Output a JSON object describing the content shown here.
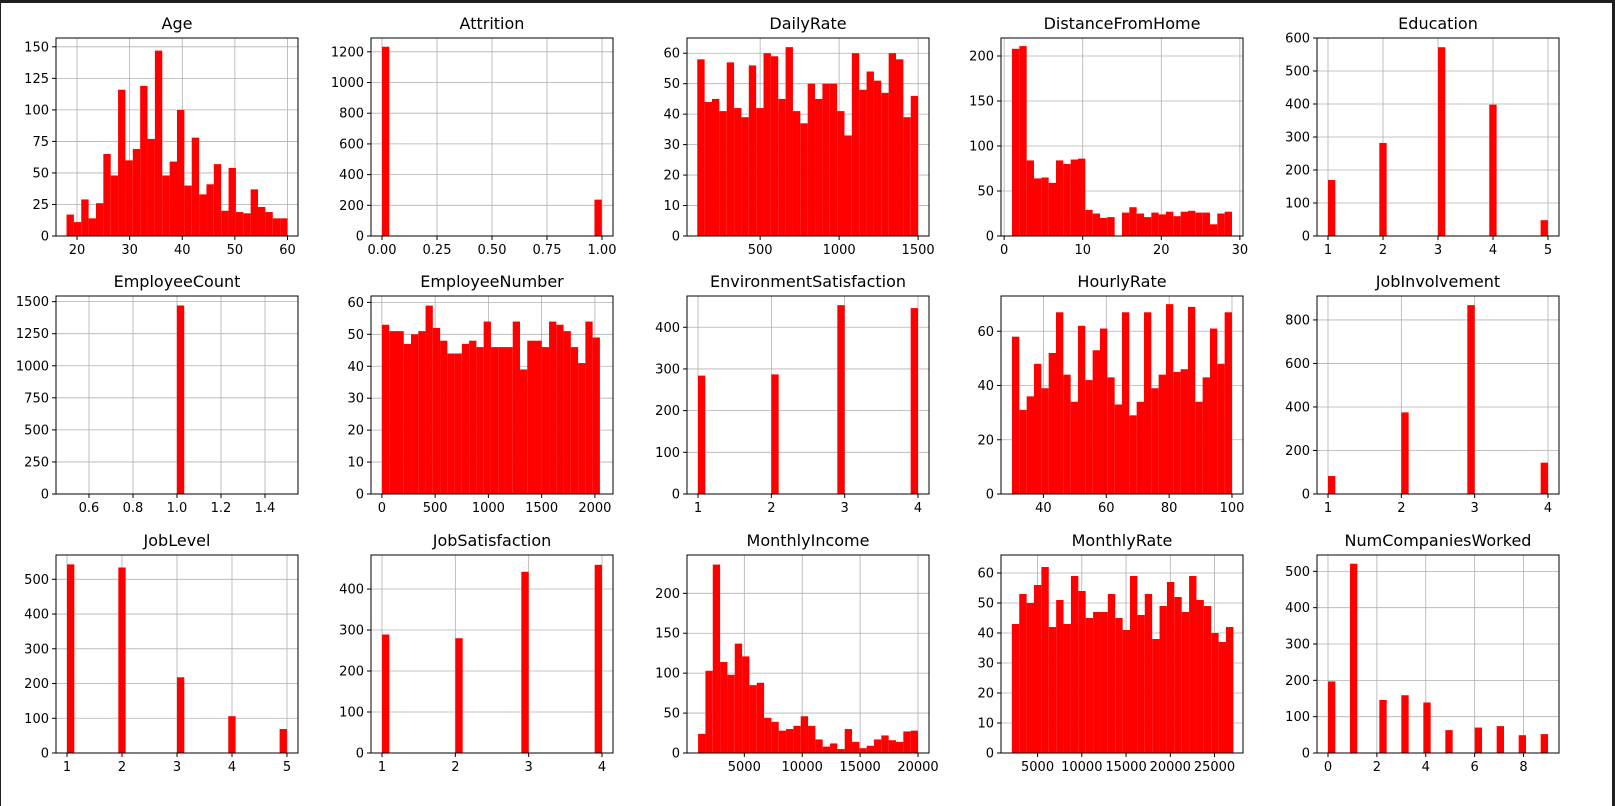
{
  "chart_data": [
    {
      "type": "bar",
      "title": "Age",
      "bar_color": "#ff0000",
      "xlim": [
        16,
        62
      ],
      "ylim": [
        0,
        157
      ],
      "xticks": [
        20,
        30,
        40,
        50,
        60
      ],
      "yticks": [
        0,
        25,
        50,
        75,
        100,
        125,
        150
      ],
      "bin_start": 18,
      "bin_width": 1.4,
      "values": [
        17,
        11,
        29,
        14,
        26,
        65,
        48,
        116,
        60,
        69,
        119,
        77,
        147,
        48,
        59,
        100,
        40,
        78,
        33,
        41,
        57,
        20,
        54,
        19,
        18,
        37,
        23,
        19,
        14,
        14
      ]
    },
    {
      "type": "bar",
      "title": "Attrition",
      "xlim": [
        -0.05,
        1.05
      ],
      "ylim": [
        0,
        1290
      ],
      "xticks": [
        "0.00",
        "0.25",
        "0.50",
        "0.75",
        "1.00"
      ],
      "xtick_values": [
        0,
        0.25,
        0.5,
        0.75,
        1
      ],
      "yticks": [
        0,
        200,
        400,
        600,
        800,
        1000,
        1200
      ],
      "bin_start": 0,
      "bin_width": 0.0333,
      "values": [
        1233,
        0,
        0,
        0,
        0,
        0,
        0,
        0,
        0,
        0,
        0,
        0,
        0,
        0,
        0,
        0,
        0,
        0,
        0,
        0,
        0,
        0,
        0,
        0,
        0,
        0,
        0,
        0,
        0,
        237
      ]
    },
    {
      "type": "bar",
      "title": "DailyRate",
      "xlim": [
        37,
        1569
      ],
      "ylim": [
        0,
        65
      ],
      "xticks": [
        500,
        1000,
        1500
      ],
      "yticks": [
        0,
        10,
        20,
        30,
        40,
        50,
        60
      ],
      "bin_start": 102,
      "bin_width": 46.6,
      "values": [
        58,
        44,
        45,
        41,
        57,
        42,
        39,
        56,
        42,
        60,
        59,
        45,
        62,
        41,
        37,
        50,
        45,
        50,
        50,
        41,
        33,
        60,
        48,
        54,
        51,
        47,
        60,
        58,
        39,
        46
      ]
    },
    {
      "type": "bar",
      "title": "DistanceFromHome",
      "xlim": [
        -0.4,
        30.4
      ],
      "ylim": [
        0,
        220
      ],
      "xticks": [
        0,
        10,
        20,
        30
      ],
      "yticks": [
        0,
        50,
        100,
        150,
        200
      ],
      "bin_start": 1,
      "bin_width": 0.9333,
      "values": [
        208,
        211,
        84,
        64,
        65,
        59,
        84,
        80,
        85,
        86,
        29,
        25,
        20,
        21,
        0,
        26,
        32,
        25,
        21,
        26,
        24,
        27,
        22,
        27,
        28,
        26,
        26,
        13,
        25,
        27
      ]
    },
    {
      "type": "bar",
      "title": "Education",
      "xlim": [
        0.8,
        5.2
      ],
      "ylim": [
        0,
        600
      ],
      "xticks": [
        1,
        2,
        3,
        4,
        5
      ],
      "yticks": [
        0,
        100,
        200,
        300,
        400,
        500,
        600
      ],
      "bin_start": 1,
      "bin_width": 0.1333,
      "values": [
        170,
        0,
        0,
        0,
        0,
        0,
        0,
        282,
        0,
        0,
        0,
        0,
        0,
        0,
        0,
        572,
        0,
        0,
        0,
        0,
        0,
        0,
        398,
        0,
        0,
        0,
        0,
        0,
        0,
        48
      ]
    },
    {
      "type": "bar",
      "title": "EmployeeCount",
      "xlim": [
        0.45,
        1.55
      ],
      "ylim": [
        0,
        1544
      ],
      "xticks": [
        "0.6",
        "0.8",
        "1.0",
        "1.2",
        "1.4"
      ],
      "xtick_values": [
        0.6,
        0.8,
        1.0,
        1.2,
        1.4
      ],
      "yticks": [
        0,
        250,
        500,
        750,
        1000,
        1250,
        1500
      ],
      "bin_start": 0.5,
      "bin_width": 0.0333,
      "values": [
        0,
        0,
        0,
        0,
        0,
        0,
        0,
        0,
        0,
        0,
        0,
        0,
        0,
        0,
        0,
        1470,
        0,
        0,
        0,
        0,
        0,
        0,
        0,
        0,
        0,
        0,
        0,
        0,
        0,
        0
      ]
    },
    {
      "type": "bar",
      "title": "EmployeeNumber",
      "xlim": [
        -102,
        2170
      ],
      "ylim": [
        0,
        62
      ],
      "xticks": [
        0,
        500,
        1000,
        1500,
        2000
      ],
      "yticks": [
        0,
        10,
        20,
        30,
        40,
        50,
        60
      ],
      "bin_start": 1,
      "bin_width": 68.2,
      "values": [
        53,
        51,
        51,
        47,
        50,
        51,
        59,
        52,
        48,
        44,
        44,
        47,
        48,
        46,
        54,
        46,
        46,
        46,
        54,
        39,
        48,
        48,
        46,
        54,
        53,
        51,
        46,
        41,
        54,
        49
      ]
    },
    {
      "type": "bar",
      "title": "EnvironmentSatisfaction",
      "xlim": [
        0.85,
        4.15
      ],
      "ylim": [
        0,
        475
      ],
      "xticks": [
        1,
        2,
        3,
        4
      ],
      "yticks": [
        0,
        100,
        200,
        300,
        400
      ],
      "bin_start": 1,
      "bin_width": 0.1,
      "values": [
        284,
        0,
        0,
        0,
        0,
        0,
        0,
        0,
        0,
        0,
        287,
        0,
        0,
        0,
        0,
        0,
        0,
        0,
        0,
        453,
        0,
        0,
        0,
        0,
        0,
        0,
        0,
        0,
        0,
        446
      ]
    },
    {
      "type": "bar",
      "title": "HourlyRate",
      "xlim": [
        26.5,
        103.5
      ],
      "ylim": [
        0,
        73
      ],
      "xticks": [
        40,
        60,
        80,
        100
      ],
      "yticks": [
        0,
        20,
        40,
        60
      ],
      "bin_start": 30,
      "bin_width": 2.333,
      "values": [
        58,
        31,
        36,
        48,
        39,
        52,
        67,
        44,
        34,
        62,
        42,
        53,
        61,
        43,
        33,
        67,
        29,
        34,
        67,
        39,
        44,
        70,
        45,
        46,
        69,
        34,
        43,
        61,
        48,
        67
      ]
    },
    {
      "type": "bar",
      "title": "JobInvolvement",
      "xlim": [
        0.85,
        4.15
      ],
      "ylim": [
        0,
        910
      ],
      "xticks": [
        1,
        2,
        3,
        4
      ],
      "yticks": [
        0,
        200,
        400,
        600,
        800
      ],
      "bin_start": 1,
      "bin_width": 0.1,
      "values": [
        83,
        0,
        0,
        0,
        0,
        0,
        0,
        0,
        0,
        0,
        375,
        0,
        0,
        0,
        0,
        0,
        0,
        0,
        0,
        868,
        0,
        0,
        0,
        0,
        0,
        0,
        0,
        0,
        0,
        144
      ]
    },
    {
      "type": "bar",
      "title": "JobLevel",
      "xlim": [
        0.8,
        5.2
      ],
      "ylim": [
        0,
        570
      ],
      "xticks": [
        1,
        2,
        3,
        4,
        5
      ],
      "yticks": [
        0,
        100,
        200,
        300,
        400,
        500
      ],
      "bin_start": 1,
      "bin_width": 0.1333,
      "values": [
        543,
        0,
        0,
        0,
        0,
        0,
        0,
        534,
        0,
        0,
        0,
        0,
        0,
        0,
        0,
        218,
        0,
        0,
        0,
        0,
        0,
        0,
        106,
        0,
        0,
        0,
        0,
        0,
        0,
        69
      ]
    },
    {
      "type": "bar",
      "title": "JobSatisfaction",
      "xlim": [
        0.85,
        4.15
      ],
      "ylim": [
        0,
        483
      ],
      "xticks": [
        1,
        2,
        3,
        4
      ],
      "yticks": [
        0,
        100,
        200,
        300,
        400
      ],
      "bin_start": 1,
      "bin_width": 0.1,
      "values": [
        289,
        0,
        0,
        0,
        0,
        0,
        0,
        0,
        0,
        0,
        280,
        0,
        0,
        0,
        0,
        0,
        0,
        0,
        0,
        442,
        0,
        0,
        0,
        0,
        0,
        0,
        0,
        0,
        0,
        459
      ]
    },
    {
      "type": "bar",
      "title": "MonthlyIncome",
      "xlim": [
        50,
        20950
      ],
      "ylim": [
        0,
        248
      ],
      "xticks": [
        5000,
        10000,
        15000,
        20000
      ],
      "yticks": [
        0,
        50,
        100,
        150,
        200
      ],
      "bin_start": 1009,
      "bin_width": 633,
      "values": [
        24,
        103,
        236,
        114,
        98,
        137,
        121,
        85,
        88,
        44,
        39,
        28,
        30,
        34,
        46,
        34,
        17,
        8,
        12,
        5,
        30,
        14,
        6,
        9,
        17,
        22,
        16,
        14,
        27,
        28
      ]
    },
    {
      "type": "bar",
      "title": "MonthlyRate",
      "xlim": [
        868,
        28218
      ],
      "ylim": [
        0,
        66
      ],
      "xticks": [
        5000,
        10000,
        15000,
        20000,
        25000
      ],
      "ytick_values_label": true,
      "yticks": [
        0,
        10,
        20,
        30,
        40,
        50,
        60
      ],
      "xtick_labels": [
        "5000",
        "10000",
        "15000",
        "20000",
        "25000"
      ],
      "bin_start": 2094,
      "bin_width": 834.6,
      "values": [
        43,
        53,
        50,
        56,
        62,
        42,
        51,
        43,
        59,
        54,
        45,
        47,
        47,
        53,
        45,
        41,
        59,
        46,
        53,
        38,
        49,
        57,
        52,
        47,
        59,
        51,
        49,
        40,
        37,
        42
      ]
    },
    {
      "type": "bar",
      "title": "NumCompaniesWorked",
      "xlim": [
        -0.45,
        9.45
      ],
      "ylim": [
        0,
        545
      ],
      "xticks": [
        0,
        2,
        4,
        6,
        8
      ],
      "yticks": [
        0,
        100,
        200,
        300,
        400,
        500
      ],
      "bin_start": 0,
      "bin_width": 0.3,
      "values": [
        197,
        0,
        0,
        521,
        0,
        0,
        0,
        146,
        0,
        0,
        159,
        0,
        0,
        139,
        0,
        0,
        63,
        0,
        0,
        0,
        70,
        0,
        0,
        74,
        0,
        0,
        49,
        0,
        0,
        52
      ]
    }
  ]
}
